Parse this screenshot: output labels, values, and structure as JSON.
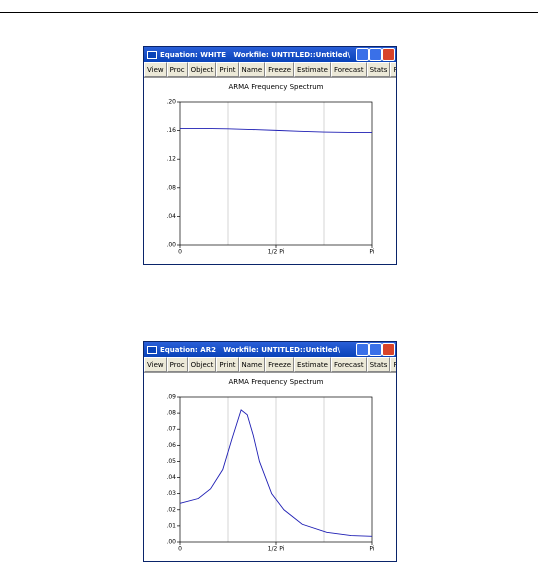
{
  "windows": [
    {
      "title": "Equation: WHITE   Workfile: UNTITLED::Untitled\\",
      "buttons": [
        [
          "View",
          "Proc",
          "Object"
        ],
        [
          "Print",
          "Name",
          "Freeze"
        ],
        [
          "Estimate",
          "Forecast",
          "Stats",
          "Resids"
        ]
      ],
      "chart": {
        "type": "line",
        "title": "ARMA Frequency Spectrum",
        "color": "#1f1fb4",
        "x": [
          0,
          0.3927,
          0.7854,
          1.1781,
          1.5708,
          1.9635,
          2.3562,
          2.7489,
          3.1416
        ],
        "values": [
          0.163,
          0.163,
          0.1625,
          0.1615,
          0.1603,
          0.159,
          0.158,
          0.1575,
          0.1573
        ],
        "xlim": [
          0,
          3.1416
        ],
        "xticks": [
          0,
          {
            "value": 1.5708,
            "label": "1/2 Pi"
          },
          {
            "value": 3.1416,
            "label": "Pi"
          }
        ],
        "xgrid": [
          0.7854,
          1.5708,
          2.3562
        ],
        "ylim": [
          0,
          0.2
        ],
        "yticks": [
          {
            "value": 0,
            "label": ".00"
          },
          {
            "value": 0.04,
            "label": ".04"
          },
          {
            "value": 0.08,
            "label": ".08"
          },
          {
            "value": 0.12,
            "label": ".12"
          },
          {
            "value": 0.16,
            "label": ".16"
          },
          {
            "value": 0.2,
            "label": ".20"
          }
        ]
      }
    },
    {
      "title": "Equation: AR2   Workfile: UNTITLED::Untitled\\",
      "buttons": [
        [
          "View",
          "Proc",
          "Object"
        ],
        [
          "Print",
          "Name",
          "Freeze"
        ],
        [
          "Estimate",
          "Forecast",
          "Stats",
          "Resid"
        ]
      ],
      "chart": {
        "type": "line",
        "title": "ARMA Frequency Spectrum",
        "color": "#1f1fb4",
        "x": [
          0,
          0.3,
          0.5,
          0.7,
          0.85,
          1.0,
          1.1,
          1.2,
          1.3,
          1.5,
          1.7,
          2.0,
          2.4,
          2.8,
          3.1416
        ],
        "values": [
          0.024,
          0.027,
          0.033,
          0.045,
          0.064,
          0.082,
          0.079,
          0.066,
          0.05,
          0.03,
          0.02,
          0.011,
          0.006,
          0.004,
          0.0035
        ],
        "xlim": [
          0,
          3.1416
        ],
        "xticks": [
          0,
          {
            "value": 1.5708,
            "label": "1/2 Pi"
          },
          {
            "value": 3.1416,
            "label": "Pi"
          }
        ],
        "xgrid": [
          0.7854,
          1.5708,
          2.3562
        ],
        "ylim": [
          0,
          0.09
        ],
        "yticks": [
          {
            "value": 0,
            "label": ".00"
          },
          {
            "value": 0.01,
            "label": ".01"
          },
          {
            "value": 0.02,
            "label": ".02"
          },
          {
            "value": 0.03,
            "label": ".03"
          },
          {
            "value": 0.04,
            "label": ".04"
          },
          {
            "value": 0.05,
            "label": ".05"
          },
          {
            "value": 0.06,
            "label": ".06"
          },
          {
            "value": 0.07,
            "label": ".07"
          },
          {
            "value": 0.08,
            "label": ".08"
          },
          {
            "value": 0.09,
            "label": ".09"
          }
        ]
      }
    }
  ]
}
